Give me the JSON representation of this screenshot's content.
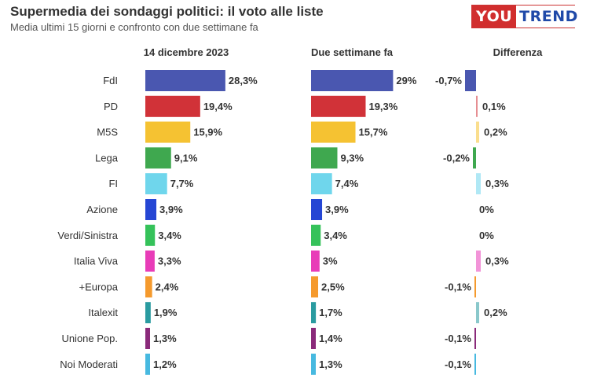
{
  "header": {
    "title": "Supermedia dei sondaggi politici: il voto alle liste",
    "subtitle": "Media ultimi 15 giorni e confronto con due settimane fa",
    "logo_you": "YOU",
    "logo_trend": "TREND",
    "logo_colors": {
      "you_bg": "#d12e2e",
      "trend_text": "#1f49a8"
    }
  },
  "chart_data": {
    "type": "bar",
    "title": "Supermedia dei sondaggi politici: il voto alle liste",
    "subtitle": "Media ultimi 15 giorni e confronto con due settimane fa",
    "column_headers": [
      "14 dicembre 2023",
      "Due settimane fa",
      "Differenza"
    ],
    "categories": [
      "FdI",
      "PD",
      "M5S",
      "Lega",
      "FI",
      "Azione",
      "Verdi/Sinistra",
      "Italia Viva",
      "+Europa",
      "Italexit",
      "Unione Pop.",
      "Noi Moderati"
    ],
    "colors": [
      "#4a57b0",
      "#d13238",
      "#f5c232",
      "#3fa84f",
      "#6fd6ec",
      "#2546d4",
      "#35c25a",
      "#e83cb8",
      "#f59a2d",
      "#2a9ba0",
      "#8a2a7a",
      "#47b9e0"
    ],
    "series": [
      {
        "name": "14 dicembre 2023",
        "values": [
          28.3,
          19.4,
          15.9,
          9.1,
          7.7,
          3.9,
          3.4,
          3.3,
          2.4,
          1.9,
          1.3,
          1.2
        ],
        "labels": [
          "28,3%",
          "19,4%",
          "15,9%",
          "9,1%",
          "7,7%",
          "3,9%",
          "3,4%",
          "3,3%",
          "2,4%",
          "1,9%",
          "1,3%",
          "1,2%"
        ]
      },
      {
        "name": "Due settimane fa",
        "values": [
          29,
          19.3,
          15.7,
          9.3,
          7.4,
          3.9,
          3.4,
          3,
          2.5,
          1.7,
          1.4,
          1.3
        ],
        "labels": [
          "29%",
          "19,3%",
          "15,7%",
          "9,3%",
          "7,4%",
          "3,9%",
          "3,4%",
          "3%",
          "2,5%",
          "1,7%",
          "1,4%",
          "1,3%"
        ]
      },
      {
        "name": "Differenza",
        "values": [
          -0.7,
          0.1,
          0.2,
          -0.2,
          0.3,
          0,
          0,
          0.3,
          -0.1,
          0.2,
          -0.1,
          -0.1
        ],
        "labels": [
          "-0,7%",
          "0,1%",
          "0,2%",
          "-0,2%",
          "0,3%",
          "0%",
          "0%",
          "0,3%",
          "-0,1%",
          "0,2%",
          "-0,1%",
          "-0,1%"
        ]
      }
    ],
    "xlim": [
      0,
      30
    ],
    "diff_lim": [
      -1,
      1
    ],
    "grid": false,
    "legend": "none"
  }
}
